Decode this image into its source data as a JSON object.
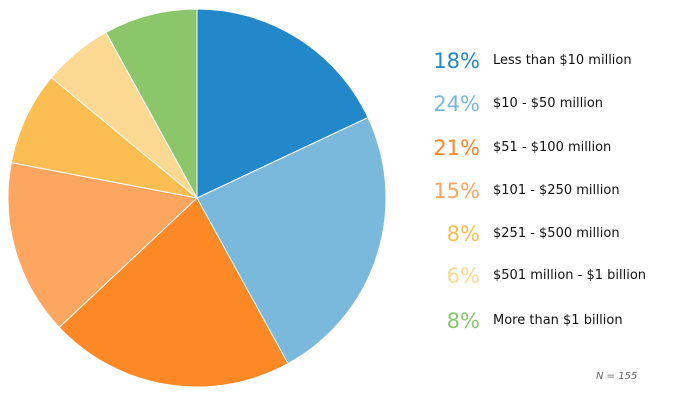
{
  "chart_data": {
    "type": "pie",
    "slices": [
      {
        "percent_label": "18%",
        "value": 18,
        "label": "Less than $10 million",
        "color": "#2288c9"
      },
      {
        "percent_label": "24%",
        "value": 24,
        "label": "$10 - $50 million",
        "color": "#7ab9db"
      },
      {
        "percent_label": "21%",
        "value": 21,
        "label": "$51 - $100 million",
        "color": "#fd8826"
      },
      {
        "percent_label": "15%",
        "value": 15,
        "label": "$101 - $250 million",
        "color": "#fca65f"
      },
      {
        "percent_label": "8%",
        "value": 8,
        "label": "$251 - $500 million",
        "color": "#fcbd52"
      },
      {
        "percent_label": "6%",
        "value": 6,
        "label": "$501 million - $1 billion",
        "color": "#fcd992"
      },
      {
        "percent_label": "8%",
        "value": 8,
        "label": "More than $1 billion",
        "color": "#8cc66b"
      }
    ],
    "legend_position": "right",
    "note": "N = 155"
  }
}
